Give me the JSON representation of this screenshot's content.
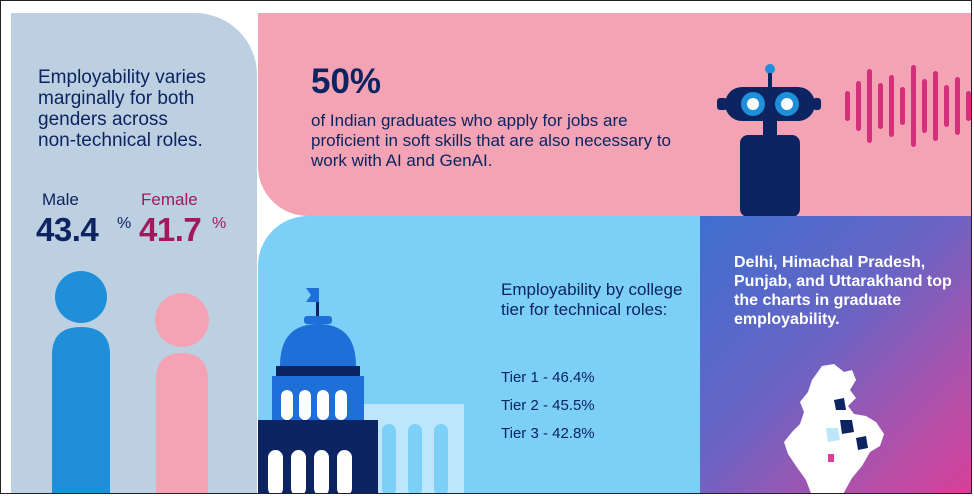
{
  "gender_panel": {
    "heading": "Employability varies\nmarginally for both\ngenders across\nnon-technical roles.",
    "male": {
      "label": "Male",
      "value": "43.4",
      "unit": "%"
    },
    "female": {
      "label": "Female",
      "value": "41.7",
      "unit": "%"
    }
  },
  "softskills_panel": {
    "big_stat": "50%",
    "text": "of Indian graduates who apply for jobs are proficient in soft skills that are also necessary to work with AI and GenAI."
  },
  "tier_panel": {
    "heading": "Employability by college tier for technical roles:",
    "items": [
      "Tier 1 - 46.4%",
      "Tier 2 - 45.5%",
      "Tier 3 - 42.8%"
    ]
  },
  "states_panel": {
    "text": "Delhi, Himachal Pradesh, Punjab, and Uttarakhand top the charts in graduate employability."
  },
  "colors": {
    "navy": "#0c2461",
    "magenta": "#a3195b",
    "pink_panel": "#f4a3b5",
    "blue_panel": "#7ccff7",
    "grey_blue_panel": "#bcd0e1",
    "male_figure": "#1e8fd8",
    "female_figure": "#f4a3b5"
  },
  "icons": [
    "male-figure-icon",
    "female-figure-icon",
    "robot-icon",
    "sound-wave-icon",
    "government-building-icon",
    "flag-icon",
    "india-map-icon"
  ]
}
